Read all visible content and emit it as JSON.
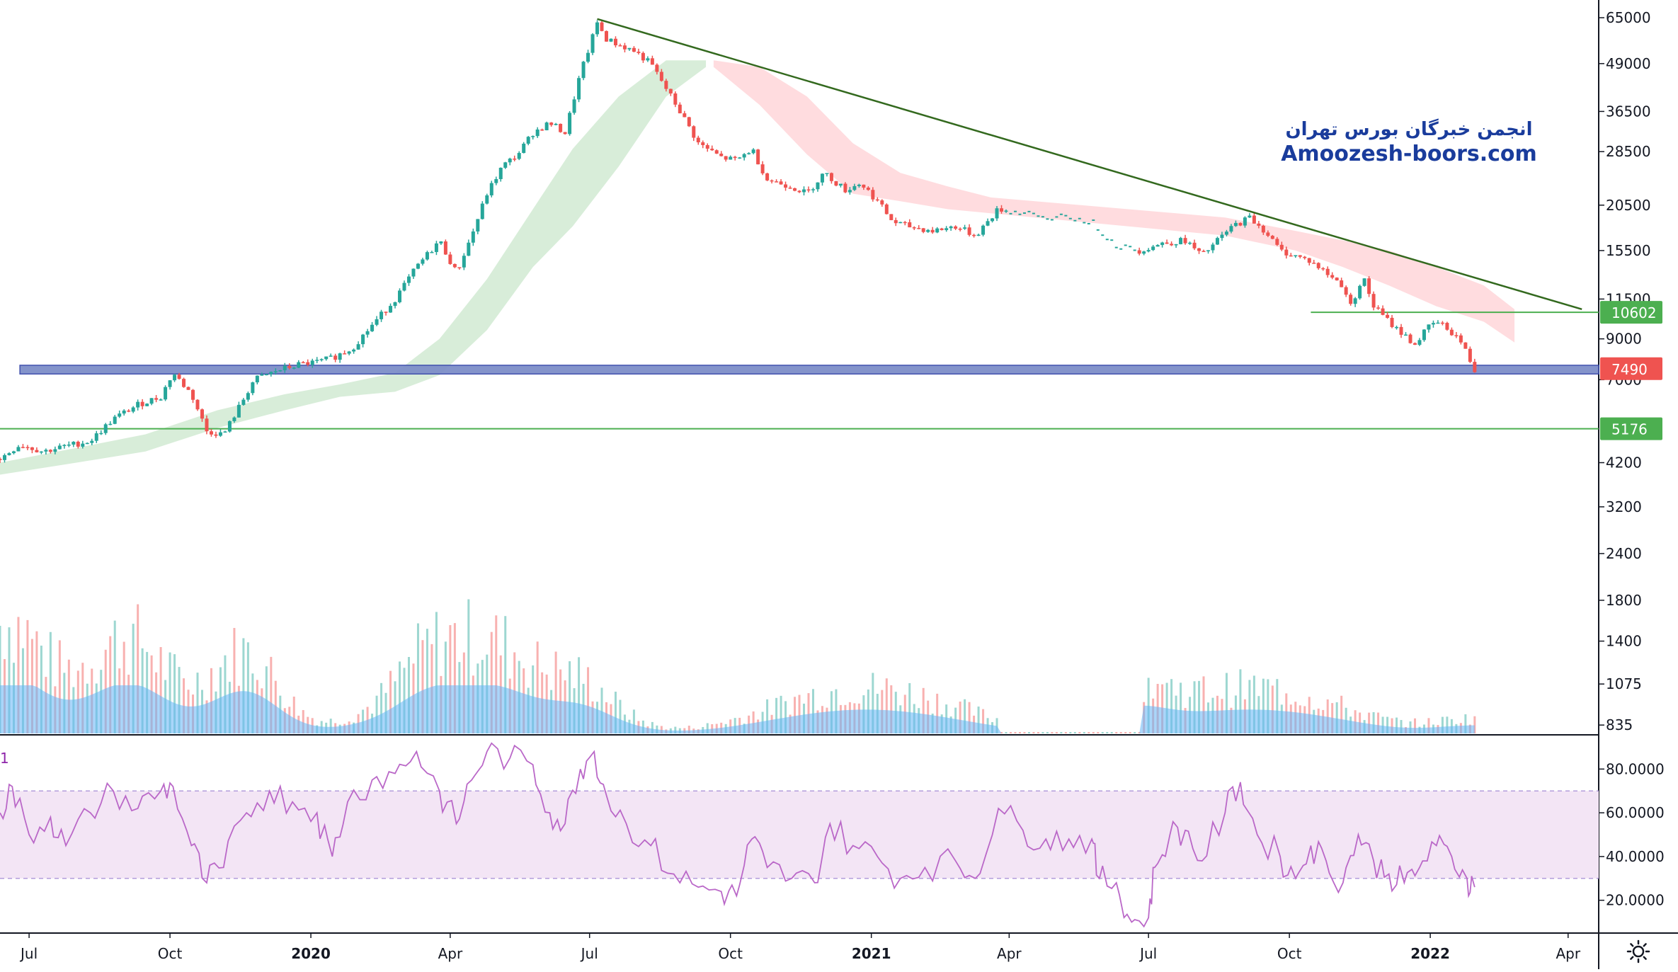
{
  "watermark": {
    "persian": "انجمن خبرگان بورس تهران",
    "site": "Amoozesh-boors.com"
  },
  "colors": {
    "up": "#26a69a",
    "down": "#ef5350",
    "trendline": "#33691e",
    "hline": "#4caf50",
    "support_zone": "#7e8fc9",
    "rsi_line": "#ba68c8",
    "rsi_band": "#f3e5f5",
    "volume_ma": "#64b5f6",
    "cloud_bull": "#c8e6c9",
    "cloud_bear": "#ffcdd2"
  },
  "settings_icon": "settings-icon",
  "chart_data": {
    "type": "candlestick",
    "price_axis": {
      "scale": "log",
      "ticks": [
        "65000",
        "49000",
        "36500",
        "28500",
        "20500",
        "15500",
        "11500",
        "9000",
        "7000",
        "4200",
        "3200",
        "2400",
        "1800",
        "1400",
        "1075",
        "835"
      ],
      "tick_values": [
        65000,
        49000,
        36500,
        28500,
        20500,
        15500,
        11500,
        9000,
        7000,
        4200,
        3200,
        2400,
        1800,
        1400,
        1075,
        835
      ],
      "range": [
        800,
        70000
      ]
    },
    "price_labels": [
      {
        "value": 10602,
        "text": "10602",
        "color": "#4caf50"
      },
      {
        "value": 7490,
        "text": "7490",
        "color": "#ef5350"
      },
      {
        "value": 5176,
        "text": "5176",
        "color": "#4caf50"
      }
    ],
    "x_axis": {
      "ticks": [
        "Jul",
        "Oct",
        "2020",
        "Apr",
        "Jul",
        "Oct",
        "2021",
        "Apr",
        "Jul",
        "Oct",
        "2022",
        "Apr"
      ],
      "tick_dates": [
        "2019-07-01",
        "2019-10-01",
        "2020-01-01",
        "2020-04-01",
        "2020-07-01",
        "2020-10-01",
        "2021-01-01",
        "2021-04-01",
        "2021-07-01",
        "2021-10-01",
        "2022-01-01",
        "2022-04-01"
      ],
      "bold": [
        "2020",
        "2021",
        "2022"
      ]
    },
    "price_path": [
      [
        "2019-06-12",
        4300
      ],
      [
        "2019-06-25",
        4700
      ],
      [
        "2019-07-10",
        4500
      ],
      [
        "2019-07-25",
        4650
      ],
      [
        "2019-08-10",
        4800
      ],
      [
        "2019-08-25",
        5500
      ],
      [
        "2019-09-10",
        6000
      ],
      [
        "2019-09-25",
        6300
      ],
      [
        "2019-10-03",
        7300
      ],
      [
        "2019-10-15",
        6400
      ],
      [
        "2019-10-25",
        5100
      ],
      [
        "2019-11-05",
        5000
      ],
      [
        "2019-11-15",
        5900
      ],
      [
        "2019-11-25",
        7000
      ],
      [
        "2019-12-10",
        7400
      ],
      [
        "2019-12-25",
        7700
      ],
      [
        "2020-01-05",
        7800
      ],
      [
        "2020-01-15",
        8000
      ],
      [
        "2020-01-28",
        8500
      ],
      [
        "2020-02-10",
        9800
      ],
      [
        "2020-02-25",
        11500
      ],
      [
        "2020-03-10",
        14000
      ],
      [
        "2020-03-25",
        16500
      ],
      [
        "2020-04-05",
        13500
      ],
      [
        "2020-04-15",
        17000
      ],
      [
        "2020-04-25",
        22000
      ],
      [
        "2020-05-05",
        26000
      ],
      [
        "2020-05-15",
        28000
      ],
      [
        "2020-05-25",
        32000
      ],
      [
        "2020-06-05",
        34000
      ],
      [
        "2020-06-15",
        32000
      ],
      [
        "2020-06-25",
        46000
      ],
      [
        "2020-07-02",
        56000
      ],
      [
        "2020-07-06",
        63000
      ],
      [
        "2020-07-12",
        57000
      ],
      [
        "2020-07-20",
        55000
      ],
      [
        "2020-07-30",
        53000
      ],
      [
        "2020-08-10",
        49000
      ],
      [
        "2020-08-20",
        42000
      ],
      [
        "2020-08-30",
        36000
      ],
      [
        "2020-09-10",
        30000
      ],
      [
        "2020-09-25",
        27500
      ],
      [
        "2020-10-05",
        27000
      ],
      [
        "2020-10-15",
        29000
      ],
      [
        "2020-10-25",
        24000
      ],
      [
        "2020-11-10",
        23000
      ],
      [
        "2020-11-20",
        22000
      ],
      [
        "2020-12-01",
        25000
      ],
      [
        "2020-12-15",
        22500
      ],
      [
        "2020-12-25",
        23500
      ],
      [
        "2021-01-05",
        21000
      ],
      [
        "2021-01-15",
        18500
      ],
      [
        "2021-01-25",
        18000
      ],
      [
        "2021-02-10",
        17500
      ],
      [
        "2021-02-25",
        18000
      ],
      [
        "2021-03-10",
        17000
      ],
      [
        "2021-03-25",
        20000
      ],
      [
        "2021-04-10",
        19500
      ],
      [
        "2021-04-25",
        19000
      ],
      [
        "2021-05-10",
        19000
      ],
      [
        "2021-05-25",
        18500
      ],
      [
        "2021-06-10",
        16000
      ],
      [
        "2021-06-25",
        15500
      ],
      [
        "2021-07-10",
        16200
      ],
      [
        "2021-07-25",
        16500
      ],
      [
        "2021-08-05",
        15000
      ],
      [
        "2021-08-15",
        16500
      ],
      [
        "2021-08-25",
        18000
      ],
      [
        "2021-09-05",
        19000
      ],
      [
        "2021-09-15",
        17500
      ],
      [
        "2021-09-25",
        15500
      ],
      [
        "2021-10-05",
        15000
      ],
      [
        "2021-10-15",
        14500
      ],
      [
        "2021-10-25",
        13500
      ],
      [
        "2021-11-05",
        12500
      ],
      [
        "2021-11-10",
        11000
      ],
      [
        "2021-11-18",
        13200
      ],
      [
        "2021-11-25",
        11000
      ],
      [
        "2021-12-05",
        10000
      ],
      [
        "2021-12-15",
        9200
      ],
      [
        "2021-12-22",
        8700
      ],
      [
        "2021-12-30",
        9600
      ],
      [
        "2022-01-05",
        10000
      ],
      [
        "2022-01-12",
        9600
      ],
      [
        "2022-01-20",
        9000
      ],
      [
        "2022-01-25",
        8200
      ],
      [
        "2022-01-30",
        7400
      ]
    ],
    "ichimoku_cloud": [
      [
        "2019-06-12",
        3900,
        4200
      ],
      [
        "2019-08-01",
        4200,
        4600
      ],
      [
        "2019-09-15",
        4500,
        5000
      ],
      [
        "2019-11-01",
        5200,
        5800
      ],
      [
        "2019-12-15",
        5800,
        6400
      ],
      [
        "2020-01-20",
        6300,
        6800
      ],
      [
        "2020-02-25",
        6500,
        7300
      ],
      [
        "2020-03-25",
        7200,
        9000
      ],
      [
        "2020-04-25",
        9500,
        13000
      ],
      [
        "2020-05-25",
        14000,
        20000
      ],
      [
        "2020-06-20",
        18000,
        29000
      ],
      [
        "2020-07-20",
        26000,
        40000
      ],
      [
        "2020-08-20",
        40000,
        50000
      ],
      [
        "2020-09-15",
        48000,
        50000
      ]
    ],
    "ichimoku_cloud_bear": [
      [
        "2020-09-20",
        48000,
        50000
      ],
      [
        "2020-10-20",
        38000,
        48000
      ],
      [
        "2020-11-20",
        28000,
        40000
      ],
      [
        "2020-12-20",
        22000,
        30000
      ],
      [
        "2021-01-20",
        21000,
        25000
      ],
      [
        "2021-02-20",
        20000,
        23000
      ],
      [
        "2021-03-20",
        19500,
        21500
      ],
      [
        "2021-08-20",
        17000,
        19000
      ],
      [
        "2021-10-05",
        15500,
        17500
      ],
      [
        "2021-11-05",
        14000,
        16500
      ],
      [
        "2021-12-05",
        12500,
        15500
      ],
      [
        "2022-01-05",
        11000,
        14000
      ],
      [
        "2022-02-05",
        10000,
        12500
      ],
      [
        "2022-02-25",
        8800,
        10800
      ]
    ],
    "trendline": [
      [
        "2020-07-06",
        64500
      ],
      [
        "2022-04-10",
        10800
      ]
    ],
    "hlines": [
      {
        "value": 10602,
        "from": "2021-10-15",
        "to": "2022-04-10"
      },
      {
        "value": 5176,
        "from": "2019-06-12",
        "to": "2022-04-10"
      }
    ],
    "support_zone": {
      "low": 7250,
      "high": 7650,
      "from": "2019-06-25",
      "to": "2022-04-10"
    },
    "volume": {
      "axis_ticks_price_scale": true,
      "peaks": [
        [
          "2019-06-15",
          0.95
        ],
        [
          "2019-09-05",
          0.6
        ],
        [
          "2019-11-20",
          0.8
        ],
        [
          "2020-03-20",
          0.5
        ],
        [
          "2020-05-01",
          0.45
        ],
        [
          "2020-06-25",
          0.35
        ],
        [
          "2021-06-20",
          0.38
        ],
        [
          "2022-01-20",
          0.1
        ]
      ]
    },
    "rsi": {
      "ticks": [
        "80.0000",
        "60.0000",
        "40.0000",
        "20.0000"
      ],
      "tick_values": [
        80,
        60,
        40,
        20
      ],
      "band": [
        30,
        70
      ],
      "range": [
        5,
        95
      ],
      "label": "1",
      "path": [
        [
          "2019-06-12",
          60
        ],
        [
          "2019-06-20",
          72
        ],
        [
          "2019-07-01",
          50
        ],
        [
          "2019-07-15",
          58
        ],
        [
          "2019-07-25",
          45
        ],
        [
          "2019-08-10",
          60
        ],
        [
          "2019-08-25",
          70
        ],
        [
          "2019-09-10",
          62
        ],
        [
          "2019-09-25",
          70
        ],
        [
          "2019-10-03",
          72
        ],
        [
          "2019-10-15",
          45
        ],
        [
          "2019-10-25",
          28
        ],
        [
          "2019-11-05",
          35
        ],
        [
          "2019-11-20",
          60
        ],
        [
          "2019-12-05",
          70
        ],
        [
          "2019-12-20",
          65
        ],
        [
          "2020-01-05",
          60
        ],
        [
          "2020-01-15",
          40
        ],
        [
          "2020-01-25",
          65
        ],
        [
          "2020-02-10",
          75
        ],
        [
          "2020-02-25",
          78
        ],
        [
          "2020-03-10",
          88
        ],
        [
          "2020-03-25",
          70
        ],
        [
          "2020-04-05",
          55
        ],
        [
          "2020-04-15",
          75
        ],
        [
          "2020-04-25",
          88
        ],
        [
          "2020-05-10",
          85
        ],
        [
          "2020-05-25",
          82
        ],
        [
          "2020-06-05",
          60
        ],
        [
          "2020-06-15",
          55
        ],
        [
          "2020-06-25",
          80
        ],
        [
          "2020-07-04",
          88
        ],
        [
          "2020-07-12",
          68
        ],
        [
          "2020-07-25",
          55
        ],
        [
          "2020-08-10",
          45
        ],
        [
          "2020-08-25",
          32
        ],
        [
          "2020-09-10",
          26
        ],
        [
          "2020-09-25",
          24
        ],
        [
          "2020-10-05",
          22
        ],
        [
          "2020-10-15",
          48
        ],
        [
          "2020-10-25",
          35
        ],
        [
          "2020-11-10",
          30
        ],
        [
          "2020-11-25",
          28
        ],
        [
          "2020-12-05",
          55
        ],
        [
          "2020-12-20",
          45
        ],
        [
          "2021-01-05",
          40
        ],
        [
          "2021-01-20",
          30
        ],
        [
          "2021-02-05",
          35
        ],
        [
          "2021-02-25",
          38
        ],
        [
          "2021-03-10",
          30
        ],
        [
          "2021-03-25",
          62
        ],
        [
          "2021-04-10",
          52
        ],
        [
          "2021-04-25",
          48
        ],
        [
          "2021-05-10",
          48
        ],
        [
          "2021-05-25",
          48
        ],
        [
          "2021-05-30",
          30
        ],
        [
          "2021-06-10",
          28
        ],
        [
          "2021-06-20",
          10
        ],
        [
          "2021-07-01",
          12
        ],
        [
          "2021-07-05",
          35
        ],
        [
          "2021-07-15",
          50
        ],
        [
          "2021-07-25",
          52
        ],
        [
          "2021-08-05",
          38
        ],
        [
          "2021-08-20",
          60
        ],
        [
          "2021-08-30",
          74
        ],
        [
          "2021-09-10",
          50
        ],
        [
          "2021-09-25",
          40
        ],
        [
          "2021-10-05",
          30
        ],
        [
          "2021-10-15",
          45
        ],
        [
          "2021-10-25",
          38
        ],
        [
          "2021-11-05",
          28
        ],
        [
          "2021-11-15",
          50
        ],
        [
          "2021-11-25",
          38
        ],
        [
          "2021-12-05",
          32
        ],
        [
          "2021-12-15",
          28
        ],
        [
          "2021-12-25",
          35
        ],
        [
          "2022-01-05",
          45
        ],
        [
          "2022-01-15",
          40
        ],
        [
          "2022-01-25",
          30
        ],
        [
          "2022-01-30",
          26
        ]
      ]
    }
  }
}
